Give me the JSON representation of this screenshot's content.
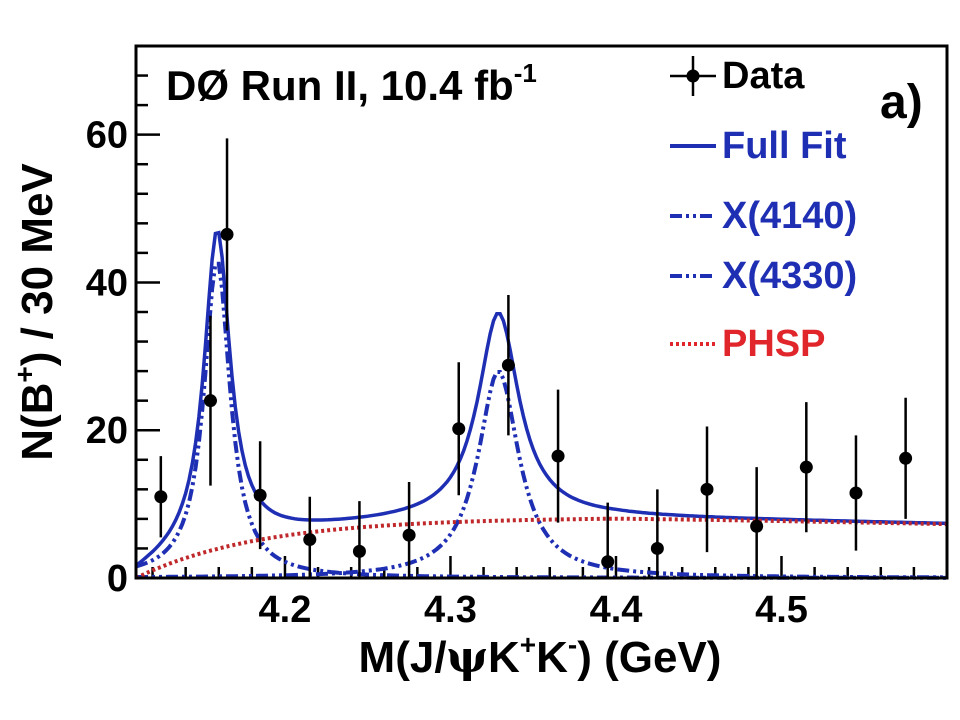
{
  "chart_data": {
    "type": "scatter",
    "title": "DØ Run II, 10.4 fb",
    "title_sup": "-1",
    "panel_label": "a)",
    "xlabel": {
      "prefix": "M(J/",
      "psi": "ψ",
      "k1": "K",
      "plus": "+",
      "k2": "K",
      "minus": "-",
      "suffix": ") (GeV)"
    },
    "ylabel": {
      "prefix": "N(B",
      "sup": "+",
      "suffix": ") / 30 MeV"
    },
    "xlim": [
      4.11,
      4.6
    ],
    "ylim": [
      0,
      72
    ],
    "xticks": [
      4.2,
      4.3,
      4.4,
      4.5
    ],
    "xtick_labels": [
      "4.2",
      "4.3",
      "4.4",
      "4.5"
    ],
    "yticks": [
      0,
      20,
      40,
      60
    ],
    "ytick_labels": [
      "0",
      "20",
      "40",
      "60"
    ],
    "data_points": [
      {
        "x": 4.125,
        "y": 11,
        "err": 5.5
      },
      {
        "x": 4.155,
        "y": 24,
        "err": 11.5
      },
      {
        "x": 4.165,
        "y": 46.5,
        "err": 13
      },
      {
        "x": 4.185,
        "y": 11.2,
        "err": 7.3
      },
      {
        "x": 4.215,
        "y": 5.2,
        "err": 5.8
      },
      {
        "x": 4.245,
        "y": 3.6,
        "err": 6.8
      },
      {
        "x": 4.275,
        "y": 5.8,
        "err": 7.2
      },
      {
        "x": 4.305,
        "y": 20.2,
        "err": 9
      },
      {
        "x": 4.335,
        "y": 28.8,
        "err": 9.5
      },
      {
        "x": 4.365,
        "y": 16.5,
        "err": 9
      },
      {
        "x": 4.395,
        "y": 2.2,
        "err": 8
      },
      {
        "x": 4.425,
        "y": 4,
        "err": 8
      },
      {
        "x": 4.455,
        "y": 12,
        "err": 8.5
      },
      {
        "x": 4.485,
        "y": 7,
        "err": 8
      },
      {
        "x": 4.515,
        "y": 15,
        "err": 8.8
      },
      {
        "x": 4.545,
        "y": 11.5,
        "err": 7.8
      },
      {
        "x": 4.575,
        "y": 16.2,
        "err": 8.2
      }
    ],
    "model": {
      "peak1_mass": 4.159,
      "peak1_width": 0.019,
      "peak1_height": 43,
      "peak2_mass": 4.329,
      "peak2_width": 0.03,
      "peak2_height": 28,
      "phsp_threshold": 4.11,
      "phsp_plateau": 8.2,
      "phsp_scale": 0.075,
      "phsp_peak_x": 4.4,
      "phsp_tail_slope": 4.5
    },
    "series": [
      {
        "name": "Full Fit",
        "color": "#1f2fb4",
        "style": "solid"
      },
      {
        "name": "X(4140)",
        "color": "#1f2fb4",
        "style": "dashdotdot"
      },
      {
        "name": "X(4330)",
        "color": "#1f2fb4",
        "style": "dashdotdot"
      },
      {
        "name": "PHSP",
        "color": "#c0292b",
        "style": "dotted"
      }
    ],
    "legend": [
      {
        "label": "Data",
        "color": "#000000",
        "marker": "point-errorbar"
      },
      {
        "label": "Full Fit",
        "color": "#1f2fb4",
        "marker": "solid"
      },
      {
        "label": "X(4140)",
        "color": "#1f2fb4",
        "marker": "dashdotdot"
      },
      {
        "label": "X(4330)",
        "color": "#1f2fb4",
        "marker": "dashdotdot"
      },
      {
        "label": "PHSP",
        "color": "#e0262b",
        "marker": "dotted"
      }
    ]
  }
}
